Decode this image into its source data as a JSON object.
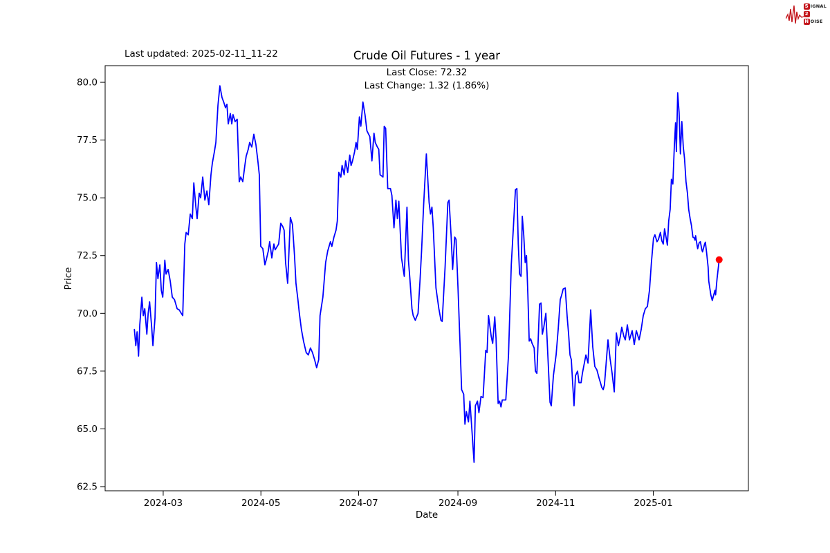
{
  "logo": {
    "s": "S",
    "ignal": "IGNAL",
    "two": "2",
    "n": "N",
    "oise": "OISE",
    "color": "#c3161c"
  },
  "header": {
    "last_updated": "Last updated: 2025-02-11_11-22",
    "title": "Crude Oil Futures - 1 year",
    "subtitle_line1": "Last Close: 72.32",
    "subtitle_line2": "Last Change: 1.32 (1.86%)"
  },
  "chart_data": {
    "type": "line",
    "title": "Crude Oil Futures - 1 year",
    "xlabel": "Date",
    "ylabel": "Price",
    "line_color": "#0000ff",
    "last_point_color": "#ff0000",
    "last_close": 72.32,
    "last_change": "1.32 (1.86%)",
    "start_date": "2024-02-12",
    "x_unit": "days_since_start",
    "x_span_days": 365.1,
    "x_pad_days": 18.25,
    "ylim": [
      62.32,
      80.72
    ],
    "yticks": [
      62.5,
      65.0,
      67.5,
      70.0,
      72.5,
      75.0,
      77.5,
      80.0
    ],
    "ytick_labels": [
      "62.5",
      "65.0",
      "67.5",
      "70.0",
      "72.5",
      "75.0",
      "77.5",
      "80.0"
    ],
    "xticks": [
      {
        "label": "2024-03",
        "day": 18
      },
      {
        "label": "2024-05",
        "day": 79
      },
      {
        "label": "2024-07",
        "day": 140
      },
      {
        "label": "2024-09",
        "day": 202
      },
      {
        "label": "2024-11",
        "day": 263
      },
      {
        "label": "2025-01",
        "day": 324
      }
    ],
    "grid": false,
    "legend": "none",
    "points": [
      [
        0,
        69.3
      ],
      [
        0.9,
        68.6
      ],
      [
        1.7,
        69.2
      ],
      [
        2.6,
        68.15
      ],
      [
        3.4,
        69.5
      ],
      [
        4.7,
        70.7
      ],
      [
        5.6,
        69.9
      ],
      [
        6.5,
        70.2
      ],
      [
        7.8,
        69.1
      ],
      [
        8.6,
        70.0
      ],
      [
        9.5,
        70.5
      ],
      [
        10.8,
        69.4
      ],
      [
        11.6,
        68.6
      ],
      [
        12.9,
        69.8
      ],
      [
        13.8,
        72.2
      ],
      [
        14.7,
        71.5
      ],
      [
        15.9,
        72.1
      ],
      [
        16.8,
        71.0
      ],
      [
        17.7,
        70.7
      ],
      [
        19,
        72.3
      ],
      [
        19.8,
        71.7
      ],
      [
        21.1,
        71.9
      ],
      [
        22.4,
        71.4
      ],
      [
        23.7,
        70.7
      ],
      [
        25,
        70.6
      ],
      [
        26.7,
        70.2
      ],
      [
        28,
        70.15
      ],
      [
        29.3,
        70.0
      ],
      [
        30.2,
        69.9
      ],
      [
        31.5,
        73.0
      ],
      [
        32.3,
        73.5
      ],
      [
        33.6,
        73.4
      ],
      [
        34.9,
        74.3
      ],
      [
        36.2,
        74.1
      ],
      [
        37.1,
        75.65
      ],
      [
        38.4,
        74.6
      ],
      [
        39.2,
        74.1
      ],
      [
        40.5,
        75.2
      ],
      [
        41.4,
        75.0
      ],
      [
        42.7,
        75.9
      ],
      [
        44,
        74.9
      ],
      [
        45.3,
        75.3
      ],
      [
        46.5,
        74.7
      ],
      [
        47.8,
        76.0
      ],
      [
        48.7,
        76.5
      ],
      [
        50,
        77.0
      ],
      [
        50.9,
        77.4
      ],
      [
        52.2,
        79.0
      ],
      [
        53.4,
        79.85
      ],
      [
        54.7,
        79.35
      ],
      [
        56,
        79.1
      ],
      [
        56.9,
        78.9
      ],
      [
        57.8,
        79.05
      ],
      [
        58.6,
        78.2
      ],
      [
        59.9,
        78.65
      ],
      [
        60.8,
        78.2
      ],
      [
        61.6,
        78.6
      ],
      [
        62.9,
        78.3
      ],
      [
        64.2,
        78.4
      ],
      [
        65.5,
        75.7
      ],
      [
        66.4,
        75.9
      ],
      [
        67.7,
        75.7
      ],
      [
        69,
        76.4
      ],
      [
        69.8,
        76.8
      ],
      [
        71.1,
        77.1
      ],
      [
        72,
        77.4
      ],
      [
        73.3,
        77.2
      ],
      [
        74.6,
        77.75
      ],
      [
        75.9,
        77.3
      ],
      [
        77.1,
        76.6
      ],
      [
        78,
        76.0
      ],
      [
        78.9,
        72.9
      ],
      [
        80.2,
        72.8
      ],
      [
        81.5,
        72.1
      ],
      [
        82.3,
        72.3
      ],
      [
        83.6,
        72.7
      ],
      [
        84.5,
        73.1
      ],
      [
        85.8,
        72.4
      ],
      [
        87.1,
        73.0
      ],
      [
        87.9,
        72.75
      ],
      [
        89.2,
        72.9
      ],
      [
        90.1,
        73.0
      ],
      [
        91.4,
        73.9
      ],
      [
        92.7,
        73.75
      ],
      [
        93.5,
        73.6
      ],
      [
        94.4,
        72.2
      ],
      [
        95.7,
        71.3
      ],
      [
        97.4,
        74.15
      ],
      [
        98.7,
        73.85
      ],
      [
        100,
        72.5
      ],
      [
        100.9,
        71.3
      ],
      [
        102.1,
        70.6
      ],
      [
        103,
        70.0
      ],
      [
        104.3,
        69.3
      ],
      [
        105.6,
        68.8
      ],
      [
        107.3,
        68.3
      ],
      [
        108.6,
        68.2
      ],
      [
        109.9,
        68.5
      ],
      [
        111.2,
        68.3
      ],
      [
        112.5,
        68.0
      ],
      [
        113.8,
        67.65
      ],
      [
        115.1,
        68.0
      ],
      [
        115.9,
        69.9
      ],
      [
        117.7,
        70.7
      ],
      [
        119.4,
        72.2
      ],
      [
        120.7,
        72.7
      ],
      [
        122.4,
        73.1
      ],
      [
        123.3,
        72.9
      ],
      [
        124.6,
        73.3
      ],
      [
        125.9,
        73.6
      ],
      [
        126.7,
        74.0
      ],
      [
        127.6,
        76.1
      ],
      [
        128.9,
        75.9
      ],
      [
        129.7,
        76.4
      ],
      [
        131,
        76.0
      ],
      [
        131.9,
        76.6
      ],
      [
        133.2,
        76.1
      ],
      [
        134.5,
        76.85
      ],
      [
        135.3,
        76.4
      ],
      [
        136.2,
        76.6
      ],
      [
        137.5,
        77.0
      ],
      [
        138.4,
        77.4
      ],
      [
        139.2,
        77.1
      ],
      [
        140.5,
        78.5
      ],
      [
        141.4,
        78.1
      ],
      [
        142.7,
        79.15
      ],
      [
        144,
        78.6
      ],
      [
        145.2,
        77.9
      ],
      [
        147,
        77.65
      ],
      [
        148.3,
        76.6
      ],
      [
        149.6,
        77.8
      ],
      [
        150.4,
        77.4
      ],
      [
        151.7,
        77.2
      ],
      [
        152.6,
        77.1
      ],
      [
        153.4,
        76.0
      ],
      [
        155.2,
        75.9
      ],
      [
        156,
        78.1
      ],
      [
        156.9,
        78.0
      ],
      [
        158.2,
        75.4
      ],
      [
        159.9,
        75.4
      ],
      [
        160.8,
        75.1
      ],
      [
        162.1,
        73.7
      ],
      [
        163.3,
        74.9
      ],
      [
        164.2,
        74.1
      ],
      [
        165.1,
        74.85
      ],
      [
        165.9,
        73.7
      ],
      [
        166.8,
        72.4
      ],
      [
        168.5,
        71.6
      ],
      [
        170.2,
        74.6
      ],
      [
        171.1,
        72.3
      ],
      [
        172,
        71.5
      ],
      [
        173.3,
        70.2
      ],
      [
        174.1,
        69.9
      ],
      [
        175.4,
        69.7
      ],
      [
        177.1,
        70.0
      ],
      [
        178.4,
        71.5
      ],
      [
        179.3,
        72.7
      ],
      [
        180.6,
        74.7
      ],
      [
        182.3,
        76.9
      ],
      [
        184,
        74.8
      ],
      [
        184.9,
        74.3
      ],
      [
        185.8,
        74.6
      ],
      [
        186.6,
        73.7
      ],
      [
        188.3,
        71.1
      ],
      [
        190.1,
        70.2
      ],
      [
        191.4,
        69.7
      ],
      [
        192.2,
        69.65
      ],
      [
        194,
        72.0
      ],
      [
        195.7,
        74.8
      ],
      [
        196.5,
        74.9
      ],
      [
        197.8,
        73.3
      ],
      [
        198.7,
        71.9
      ],
      [
        200,
        73.3
      ],
      [
        200.8,
        73.2
      ],
      [
        202.1,
        71.0
      ],
      [
        203.4,
        68.5
      ],
      [
        204.3,
        66.7
      ],
      [
        205.6,
        66.5
      ],
      [
        206.4,
        65.2
      ],
      [
        207.3,
        65.75
      ],
      [
        208.6,
        65.3
      ],
      [
        209.5,
        66.2
      ],
      [
        210.8,
        64.9
      ],
      [
        212.1,
        63.55
      ],
      [
        212.9,
        66.0
      ],
      [
        214.2,
        66.2
      ],
      [
        215.1,
        65.7
      ],
      [
        216.4,
        66.4
      ],
      [
        217.7,
        66.35
      ],
      [
        219.4,
        68.4
      ],
      [
        220.2,
        68.3
      ],
      [
        221.1,
        69.9
      ],
      [
        222.8,
        69.0
      ],
      [
        223.7,
        68.7
      ],
      [
        225,
        69.85
      ],
      [
        225.8,
        68.9
      ],
      [
        227.1,
        66.1
      ],
      [
        228,
        66.2
      ],
      [
        228.9,
        65.95
      ],
      [
        229.7,
        66.25
      ],
      [
        231.9,
        66.25
      ],
      [
        233.6,
        68.2
      ],
      [
        235.3,
        72.1
      ],
      [
        236.6,
        73.7
      ],
      [
        237.9,
        75.35
      ],
      [
        238.8,
        75.4
      ],
      [
        239.7,
        73.0
      ],
      [
        240.5,
        71.7
      ],
      [
        241.4,
        71.6
      ],
      [
        242.2,
        74.2
      ],
      [
        243.1,
        73.4
      ],
      [
        244,
        72.2
      ],
      [
        244.8,
        72.5
      ],
      [
        245.7,
        70.8
      ],
      [
        246.5,
        68.8
      ],
      [
        247.4,
        68.9
      ],
      [
        248.3,
        68.7
      ],
      [
        249.6,
        68.5
      ],
      [
        250.4,
        67.5
      ],
      [
        251.3,
        67.4
      ],
      [
        253,
        70.4
      ],
      [
        253.9,
        70.45
      ],
      [
        254.7,
        69.1
      ],
      [
        255.6,
        69.4
      ],
      [
        256.9,
        70.0
      ],
      [
        258.2,
        68.1
      ],
      [
        259.5,
        66.15
      ],
      [
        260.3,
        66.0
      ],
      [
        261.6,
        67.3
      ],
      [
        263.3,
        68.2
      ],
      [
        264.6,
        69.3
      ],
      [
        265.9,
        70.6
      ],
      [
        266.8,
        70.8
      ],
      [
        267.7,
        71.05
      ],
      [
        269,
        71.1
      ],
      [
        270.2,
        69.85
      ],
      [
        271.1,
        69.1
      ],
      [
        272,
        68.2
      ],
      [
        272.8,
        68.0
      ],
      [
        273.7,
        66.9
      ],
      [
        274.5,
        66.0
      ],
      [
        275.4,
        67.3
      ],
      [
        276.7,
        67.5
      ],
      [
        277.6,
        67.0
      ],
      [
        278.9,
        67.0
      ],
      [
        279.7,
        67.4
      ],
      [
        281.9,
        68.2
      ],
      [
        283.2,
        67.85
      ],
      [
        284.9,
        70.15
      ],
      [
        286.2,
        68.55
      ],
      [
        287.5,
        67.7
      ],
      [
        288.8,
        67.55
      ],
      [
        290.1,
        67.2
      ],
      [
        291,
        67.0
      ],
      [
        291.8,
        66.8
      ],
      [
        292.7,
        66.7
      ],
      [
        293.5,
        66.9
      ],
      [
        295.7,
        68.85
      ],
      [
        297,
        68.05
      ],
      [
        298.3,
        67.4
      ],
      [
        299.6,
        66.6
      ],
      [
        300.9,
        69.15
      ],
      [
        302.2,
        68.6
      ],
      [
        303.4,
        69.0
      ],
      [
        304.3,
        69.4
      ],
      [
        305.6,
        69.0
      ],
      [
        306.5,
        68.85
      ],
      [
        307.8,
        69.5
      ],
      [
        309.1,
        68.85
      ],
      [
        310.8,
        69.25
      ],
      [
        312.1,
        68.65
      ],
      [
        313.4,
        69.25
      ],
      [
        315.1,
        68.85
      ],
      [
        316.4,
        69.3
      ],
      [
        317.7,
        69.9
      ],
      [
        319,
        70.2
      ],
      [
        320.3,
        70.3
      ],
      [
        321.6,
        71.0
      ],
      [
        322.8,
        72.2
      ],
      [
        324.1,
        73.25
      ],
      [
        325,
        73.4
      ],
      [
        326.3,
        73.1
      ],
      [
        327.2,
        73.2
      ],
      [
        328.4,
        73.5
      ],
      [
        329.3,
        73.14
      ],
      [
        330.2,
        73.0
      ],
      [
        331,
        73.66
      ],
      [
        331.9,
        73.3
      ],
      [
        332.8,
        72.95
      ],
      [
        333.6,
        74.0
      ],
      [
        334.5,
        74.5
      ],
      [
        335.3,
        75.8
      ],
      [
        336.2,
        75.6
      ],
      [
        337.1,
        77.2
      ],
      [
        337.9,
        78.25
      ],
      [
        338.4,
        77.0
      ],
      [
        339.2,
        79.55
      ],
      [
        340.1,
        78.7
      ],
      [
        340.9,
        76.9
      ],
      [
        341.8,
        78.3
      ],
      [
        342.7,
        77.2
      ],
      [
        343.5,
        76.7
      ],
      [
        344.4,
        75.7
      ],
      [
        345.3,
        75.2
      ],
      [
        346.1,
        74.5
      ],
      [
        347,
        74.1
      ],
      [
        347.8,
        73.8
      ],
      [
        348.7,
        73.3
      ],
      [
        349.6,
        73.26
      ],
      [
        350,
        73.17
      ],
      [
        350.4,
        73.36
      ],
      [
        351.3,
        72.95
      ],
      [
        351.7,
        72.8
      ],
      [
        352.6,
        73.05
      ],
      [
        353.4,
        73.1
      ],
      [
        354.3,
        72.75
      ],
      [
        354.7,
        72.66
      ],
      [
        356,
        73.0
      ],
      [
        356.5,
        73.08
      ],
      [
        357.3,
        72.6
      ],
      [
        358.2,
        72.0
      ],
      [
        358.6,
        71.4
      ],
      [
        359.9,
        70.8
      ],
      [
        360.8,
        70.56
      ],
      [
        362.5,
        71.0
      ],
      [
        362.9,
        70.8
      ],
      [
        363.8,
        71.5
      ],
      [
        364.7,
        72.05
      ],
      [
        365.1,
        72.32
      ]
    ]
  }
}
